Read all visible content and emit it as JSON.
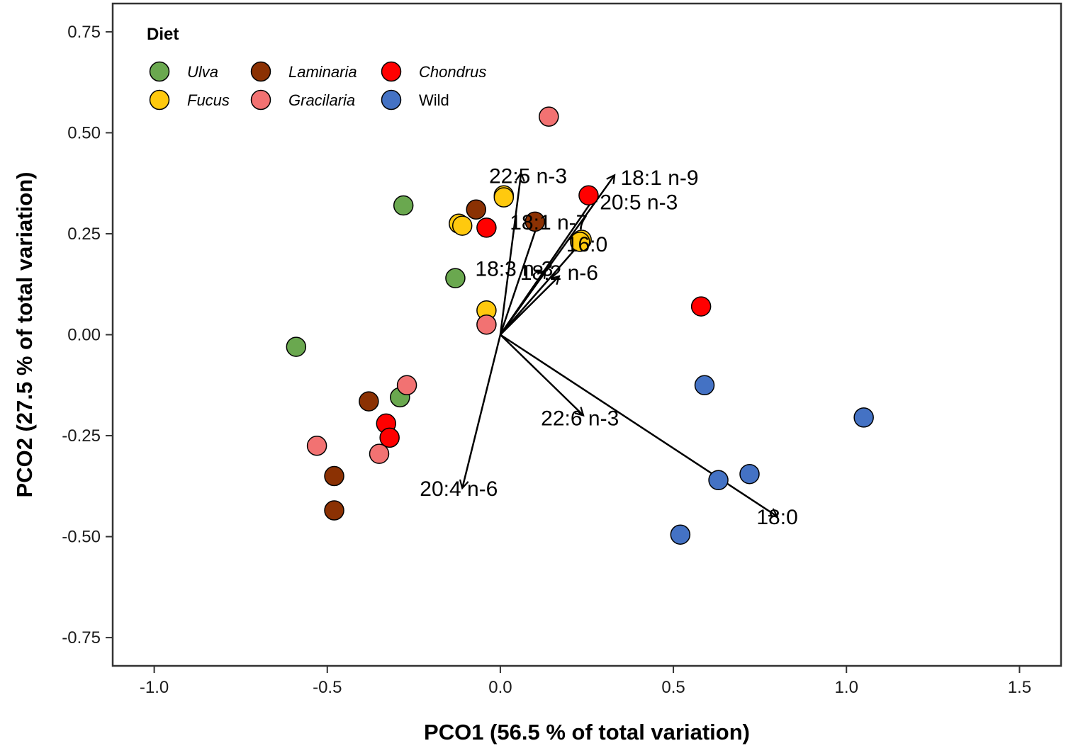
{
  "chart_data": {
    "type": "scatter",
    "title": "",
    "xlabel": "PCO1 (56.5 % of total variation)",
    "ylabel": "PCO2 (27.5 % of total variation)",
    "xlim": [
      -1.12,
      1.62
    ],
    "ylim": [
      -0.82,
      0.82
    ],
    "x_ticks": [
      -1.0,
      -0.5,
      0.0,
      0.5,
      1.0,
      1.5
    ],
    "x_tick_labels": [
      "-1.0",
      "-0.5",
      "0.0",
      "0.5",
      "1.0",
      "1.5"
    ],
    "y_ticks": [
      0.75,
      0.5,
      0.25,
      0.0,
      -0.25,
      -0.5,
      -0.75
    ],
    "y_tick_labels": [
      "0.75",
      "0.50",
      "0.25",
      "0.00",
      "-0.25",
      "-0.50",
      "-0.75"
    ],
    "legend": {
      "title": "Diet",
      "position": "top-left",
      "entries": [
        {
          "name": "Ulva",
          "italic": true
        },
        {
          "name": "Fucus",
          "italic": true
        },
        {
          "name": "Laminaria",
          "italic": true
        },
        {
          "name": "Gracilaria",
          "italic": true
        },
        {
          "name": "Chondrus",
          "italic": true
        },
        {
          "name": "Wild",
          "italic": false
        }
      ]
    },
    "colors": {
      "Ulva": "#6aa84f",
      "Fucus": "#ffc90e",
      "Laminaria": "#8b3103",
      "Gracilaria": "#f27272",
      "Chondrus": "#ff0000",
      "Wild": "#4472c4"
    },
    "series": [
      {
        "name": "Ulva",
        "points": [
          [
            -0.28,
            0.32
          ],
          [
            -0.13,
            0.14
          ],
          [
            -0.59,
            -0.03
          ],
          [
            -0.29,
            -0.155
          ]
        ]
      },
      {
        "name": "Fucus",
        "points": [
          [
            0.01,
            0.345
          ],
          [
            0.01,
            0.34
          ],
          [
            -0.12,
            0.275
          ],
          [
            -0.11,
            0.27
          ],
          [
            0.235,
            0.235
          ],
          [
            0.23,
            0.23
          ],
          [
            -0.04,
            0.06
          ]
        ]
      },
      {
        "name": "Laminaria",
        "points": [
          [
            -0.07,
            0.31
          ],
          [
            0.1,
            0.28
          ],
          [
            -0.38,
            -0.165
          ],
          [
            -0.48,
            -0.35
          ],
          [
            -0.48,
            -0.435
          ]
        ]
      },
      {
        "name": "Gracilaria",
        "points": [
          [
            0.14,
            0.54
          ],
          [
            -0.04,
            0.025
          ],
          [
            -0.27,
            -0.125
          ],
          [
            -0.53,
            -0.275
          ],
          [
            -0.35,
            -0.295
          ]
        ]
      },
      {
        "name": "Chondrus",
        "points": [
          [
            0.255,
            0.345
          ],
          [
            -0.04,
            0.265
          ],
          [
            0.58,
            0.07
          ],
          [
            -0.33,
            -0.22
          ],
          [
            -0.32,
            -0.255
          ]
        ]
      },
      {
        "name": "Wild",
        "points": [
          [
            0.59,
            -0.125
          ],
          [
            1.05,
            -0.205
          ],
          [
            0.72,
            -0.345
          ],
          [
            0.63,
            -0.36
          ],
          [
            0.52,
            -0.495
          ]
        ]
      }
    ],
    "vectors": [
      {
        "label": "22:5 n-3",
        "x": 0.06,
        "y": 0.4,
        "label_x": 0.08,
        "label_y": 0.395
      },
      {
        "label": "18:1 n-9",
        "x": 0.33,
        "y": 0.395,
        "label_x": 0.46,
        "label_y": 0.39
      },
      {
        "label": "20:5 n-3",
        "x": 0.28,
        "y": 0.35,
        "label_x": 0.4,
        "label_y": 0.33
      },
      {
        "label": "18:1 n-7",
        "x": 0.11,
        "y": 0.28,
        "label_x": 0.14,
        "label_y": 0.28
      },
      {
        "label": "16:0",
        "x": 0.25,
        "y": 0.245,
        "label_x": 0.25,
        "label_y": 0.225
      },
      {
        "label": "18:3 n-3",
        "x": 0.13,
        "y": 0.16,
        "label_x": 0.04,
        "label_y": 0.165
      },
      {
        "label": "18:2 n-6",
        "x": 0.17,
        "y": 0.145,
        "label_x": 0.17,
        "label_y": 0.155
      },
      {
        "label": "22:6 n-3",
        "x": 0.24,
        "y": -0.2,
        "label_x": 0.23,
        "label_y": -0.205
      },
      {
        "label": "20:4 n-6",
        "x": -0.11,
        "y": -0.38,
        "label_x": -0.12,
        "label_y": -0.38
      },
      {
        "label": "18:0",
        "x": 0.8,
        "y": -0.45,
        "label_x": 0.8,
        "label_y": -0.45
      }
    ]
  }
}
